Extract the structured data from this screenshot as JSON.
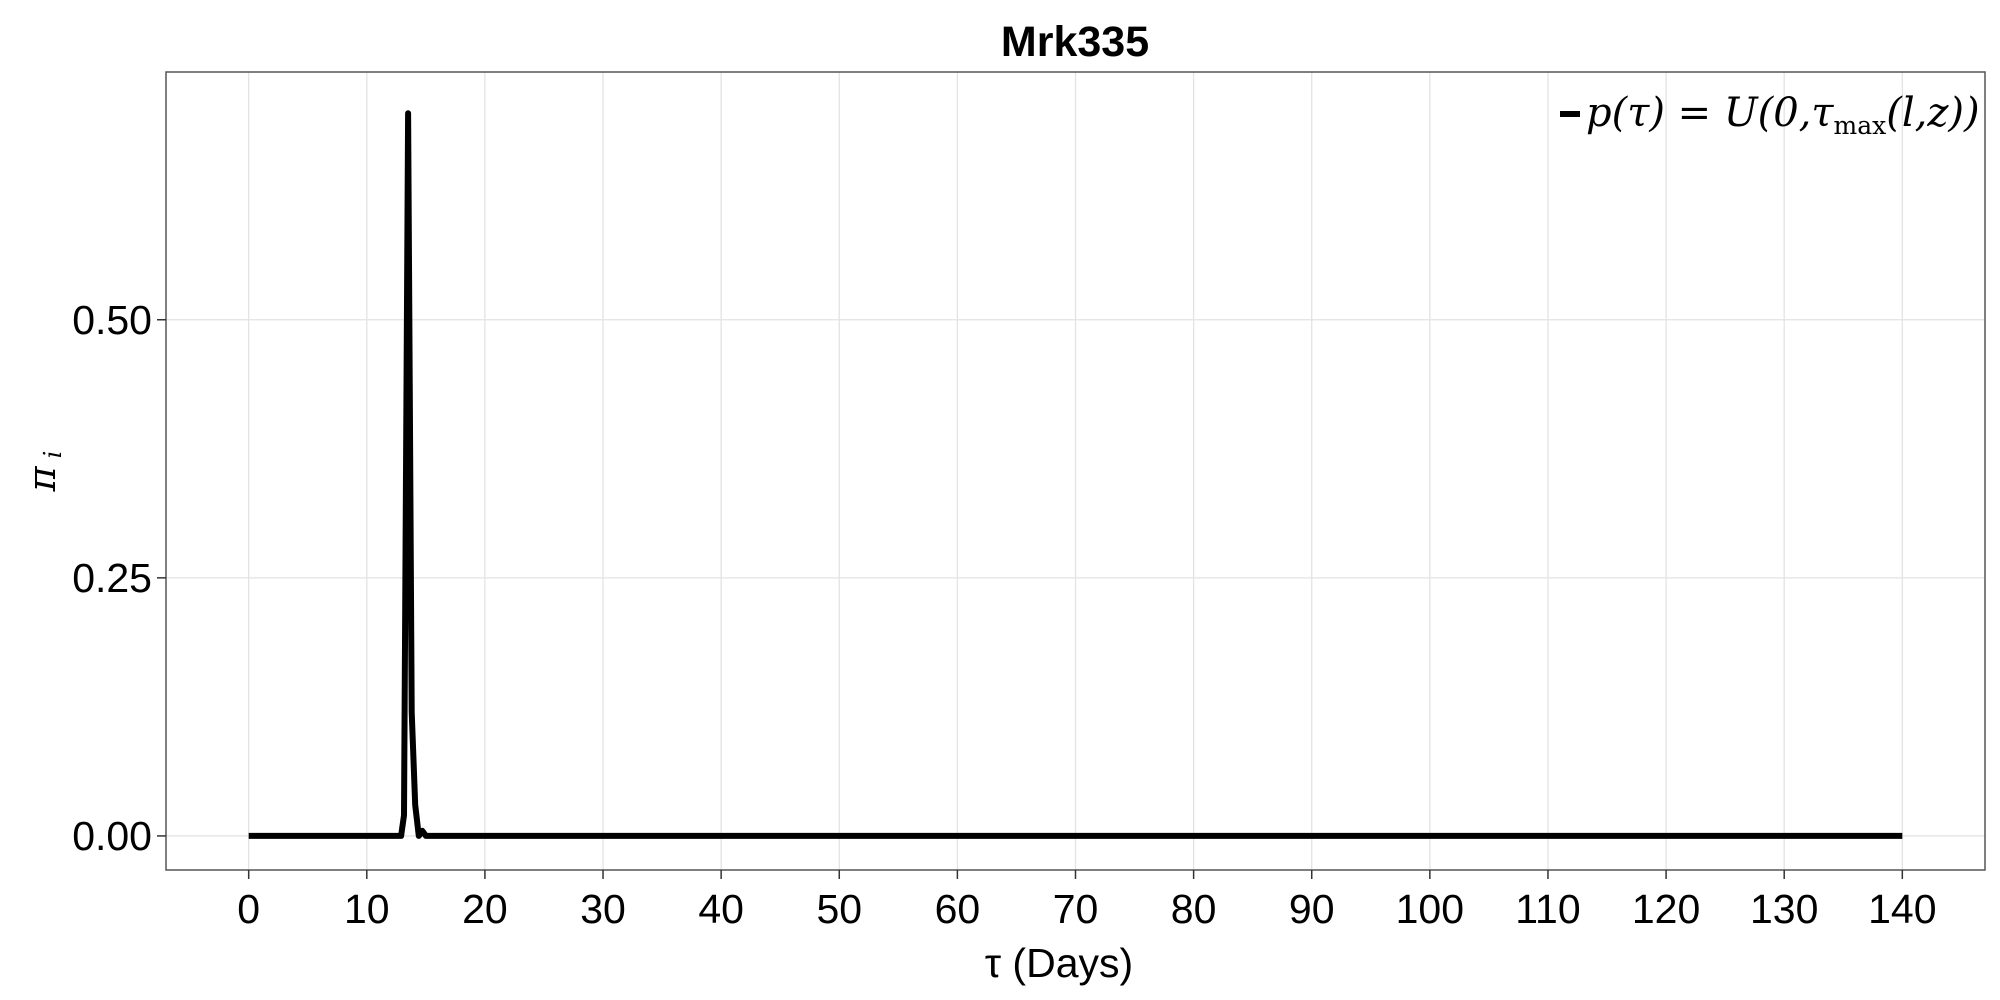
{
  "chart_data": {
    "type": "line",
    "title": "Mrk335",
    "xlabel": "τ (Days)",
    "ylabel": "π i",
    "ylabel_parts": {
      "base": "π",
      "sub": "i"
    },
    "xlim": [
      -7,
      147
    ],
    "ylim": [
      -0.033,
      0.74
    ],
    "xticks": [
      0,
      10,
      20,
      30,
      40,
      50,
      60,
      70,
      80,
      90,
      100,
      110,
      120,
      130,
      140
    ],
    "xtick_labels": [
      "0",
      "10",
      "20",
      "30",
      "40",
      "50",
      "60",
      "70",
      "80",
      "90",
      "100",
      "110",
      "120",
      "130",
      "140"
    ],
    "yticks": [
      0.0,
      0.25,
      0.5
    ],
    "ytick_labels": [
      "0.00",
      "0.25",
      "0.50"
    ],
    "grid": true,
    "legend_position": "top-right",
    "series": [
      {
        "name": "p(τ) = U(0,τ max(l,z))",
        "color": "#000000",
        "x": [
          0,
          12.9,
          13.15,
          13.5,
          13.8,
          14.1,
          14.4,
          14.7,
          15.0,
          140
        ],
        "y": [
          0,
          0,
          0.02,
          0.7,
          0.12,
          0.03,
          0.0,
          0.005,
          0,
          0
        ]
      }
    ],
    "legend": {
      "label_parts": {
        "pre": "p(τ) = U(0,τ",
        "sub": "max",
        "post": "(l,z))"
      }
    }
  }
}
